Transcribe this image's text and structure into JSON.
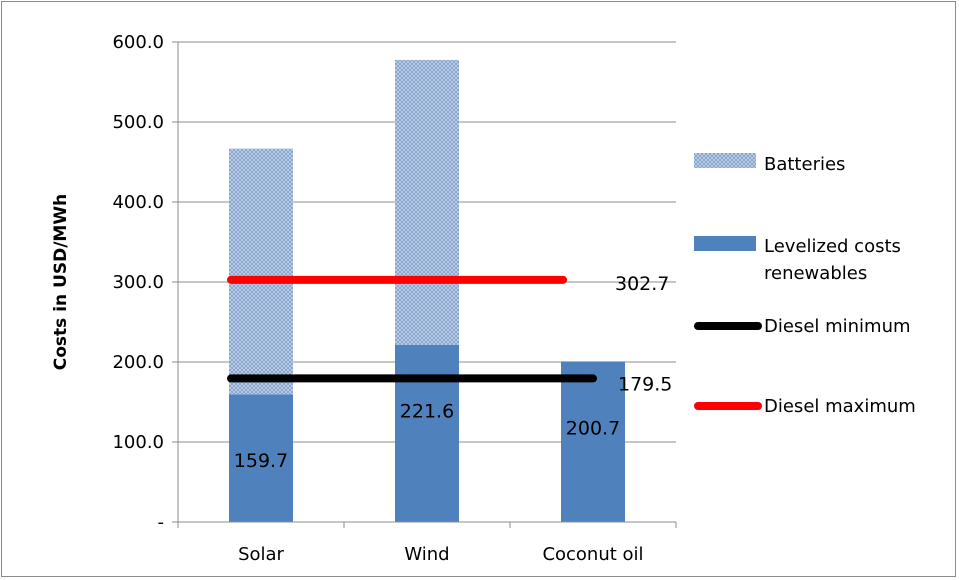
{
  "chart_data": {
    "type": "bar",
    "stacked": true,
    "categories": [
      "Solar",
      "Wind",
      "Coconut oil"
    ],
    "ylabel": "Costs in USD/MWh",
    "xlabel": "",
    "ylim": [
      0,
      600
    ],
    "yticks": [
      {
        "value": 0,
        "label": "-"
      },
      {
        "value": 100,
        "label": "100.0"
      },
      {
        "value": 200,
        "label": "200.0"
      },
      {
        "value": 300,
        "label": "300.0"
      },
      {
        "value": 400,
        "label": "400.0"
      },
      {
        "value": 500,
        "label": "500.0"
      },
      {
        "value": 600,
        "label": "600.0"
      }
    ],
    "grid": true,
    "series": [
      {
        "name": "Levelized costs renewables",
        "values": [
          159.7,
          221.6,
          200.7
        ],
        "color": "#4f81bd",
        "labels": [
          "159.7",
          "221.6",
          "200.7"
        ]
      },
      {
        "name": "Batteries",
        "values": [
          307,
          356,
          0
        ],
        "color": "#a7bfdf",
        "pattern": "crosshatch"
      }
    ],
    "lines": [
      {
        "name": "Diesel minimum",
        "value": 179.5,
        "label": "179.5",
        "color": "#000000"
      },
      {
        "name": "Diesel maximum",
        "value": 302.7,
        "label": "302.7",
        "color": "#ff0000"
      }
    ],
    "legend": {
      "position": "right",
      "items": [
        {
          "label": "Batteries",
          "kind": "pattern"
        },
        {
          "label": "Levelized costs renewables",
          "label_lines": [
            "Levelized costs",
            "renewables"
          ],
          "kind": "bar"
        },
        {
          "label": "Diesel minimum",
          "kind": "line",
          "color": "#000000"
        },
        {
          "label": "Diesel maximum",
          "kind": "line",
          "color": "#ff0000"
        }
      ]
    }
  }
}
